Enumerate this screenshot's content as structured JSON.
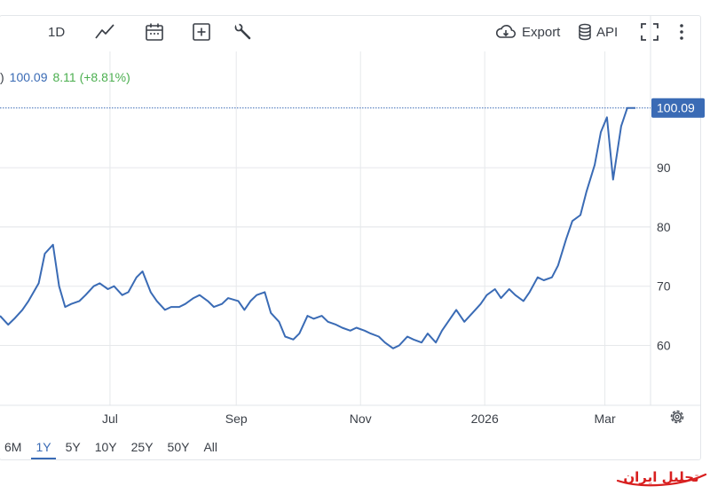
{
  "toolbar": {
    "period_label": "1D",
    "export_label": "Export",
    "api_label": "API",
    "icons": [
      "line-chart-icon",
      "calendar-icon",
      "plus-box-icon",
      "wrench-icon",
      "cloud-download-icon",
      "database-icon",
      "expand-icon",
      "more-vertical-icon"
    ]
  },
  "legend": {
    "prefix": ")",
    "value": "100.09",
    "change": "8.11 (+8.81%)"
  },
  "range_buttons": [
    "6M",
    "1Y",
    "5Y",
    "10Y",
    "25Y",
    "50Y",
    "All"
  ],
  "active_range": "1Y",
  "colors": {
    "line": "#3a6bb5",
    "last_value_badge": "#3a6bb5",
    "change_positive": "#4caf50"
  },
  "watermark_text": "تحلیل ایران",
  "chart_data": {
    "type": "line",
    "x_tick_labels": [
      "Jul",
      "Sep",
      "Nov",
      "2026",
      "Mar"
    ],
    "y_tick_labels": [
      "60",
      "70",
      "80",
      "90",
      "100.09"
    ],
    "last_value": "100.09",
    "ylim": [
      50,
      105
    ],
    "grid": true,
    "x": [
      "2025-05-08",
      "2025-05-12",
      "2025-05-15",
      "2025-05-19",
      "2025-05-22",
      "2025-05-27",
      "2025-05-30",
      "2025-06-03",
      "2025-06-06",
      "2025-06-09",
      "2025-06-12",
      "2025-06-16",
      "2025-06-19",
      "2025-06-23",
      "2025-06-26",
      "2025-06-30",
      "2025-07-03",
      "2025-07-07",
      "2025-07-10",
      "2025-07-14",
      "2025-07-17",
      "2025-07-21",
      "2025-07-24",
      "2025-07-28",
      "2025-07-31",
      "2025-08-04",
      "2025-08-07",
      "2025-08-11",
      "2025-08-14",
      "2025-08-18",
      "2025-08-21",
      "2025-08-25",
      "2025-08-28",
      "2025-09-02",
      "2025-09-05",
      "2025-09-08",
      "2025-09-11",
      "2025-09-15",
      "2025-09-18",
      "2025-09-22",
      "2025-09-25",
      "2025-09-29",
      "2025-10-02",
      "2025-10-06",
      "2025-10-09",
      "2025-10-13",
      "2025-10-16",
      "2025-10-20",
      "2025-10-23",
      "2025-10-27",
      "2025-10-30",
      "2025-11-03",
      "2025-11-06",
      "2025-11-10",
      "2025-11-13",
      "2025-11-17",
      "2025-11-20",
      "2025-11-24",
      "2025-11-27",
      "2025-12-01",
      "2025-12-04",
      "2025-12-08",
      "2025-12-11",
      "2025-12-15",
      "2025-12-18",
      "2025-12-22",
      "2025-12-26",
      "2025-12-30",
      "2026-01-02",
      "2026-01-06",
      "2026-01-09",
      "2026-01-13",
      "2026-01-16",
      "2026-01-20",
      "2026-01-23",
      "2026-01-27",
      "2026-01-30",
      "2026-02-03",
      "2026-02-06",
      "2026-02-10",
      "2026-02-13",
      "2026-02-17",
      "2026-02-20",
      "2026-02-24",
      "2026-02-27",
      "2026-03-02",
      "2026-03-05",
      "2026-03-09",
      "2026-03-12",
      "2026-03-16"
    ],
    "series": [
      {
        "values": [
          65.0,
          63.5,
          64.5,
          66.0,
          67.5,
          70.5,
          75.5,
          77.0,
          70.0,
          66.5,
          67.0,
          67.5,
          68.5,
          70.0,
          70.5,
          69.5,
          70.0,
          68.5,
          69.0,
          71.5,
          72.5,
          69.0,
          67.5,
          66.0,
          66.5,
          66.5,
          67.0,
          68.0,
          68.5,
          67.5,
          66.5,
          67.0,
          68.0,
          67.5,
          66.0,
          67.5,
          68.5,
          69.0,
          65.5,
          64.0,
          61.5,
          61.0,
          62.0,
          65.0,
          64.5,
          65.0,
          64.0,
          63.5,
          63.0,
          62.5,
          63.0,
          62.5,
          62.0,
          61.5,
          60.5,
          59.5,
          60.0,
          61.5,
          61.0,
          60.5,
          62.0,
          60.5,
          62.5,
          64.5,
          66.0,
          64.0,
          65.5,
          67.0,
          68.5,
          69.5,
          68.0,
          69.5,
          68.5,
          67.5,
          69.0,
          71.5,
          71.0,
          71.5,
          73.5,
          78.0,
          81.0,
          82.0,
          86.0,
          90.5,
          96.0,
          98.5,
          88.0,
          97.0,
          100.09,
          100.09
        ]
      }
    ]
  }
}
